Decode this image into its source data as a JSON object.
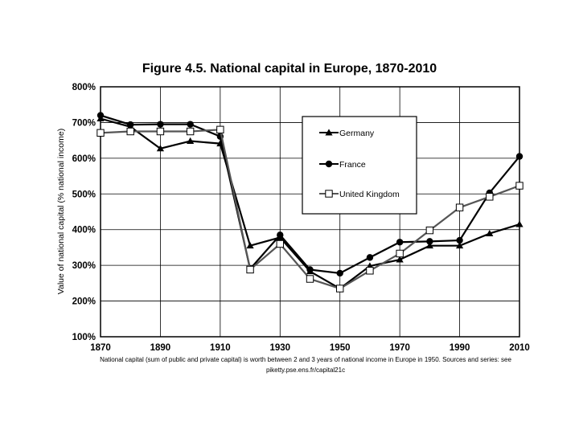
{
  "chart_data": {
    "type": "line",
    "title": "Figure 4.5. National capital in Europe, 1870-2010",
    "xlabel": "",
    "ylabel": "Value of national capital (% national income)",
    "x": [
      1870,
      1880,
      1890,
      1900,
      1910,
      1920,
      1930,
      1940,
      1950,
      1960,
      1970,
      1980,
      1990,
      2000,
      2010
    ],
    "xticks": [
      1870,
      1890,
      1910,
      1930,
      1950,
      1970,
      1990,
      2010
    ],
    "xtick_labels": [
      "1870",
      "1890",
      "1910",
      "1930",
      "1950",
      "1970",
      "1990",
      "2010"
    ],
    "xlim": [
      1870,
      2010
    ],
    "ylim": [
      100,
      800
    ],
    "yticks": [
      100,
      200,
      300,
      400,
      500,
      600,
      700,
      800
    ],
    "ytick_labels": [
      "100%",
      "200%",
      "300%",
      "400%",
      "500%",
      "600%",
      "700%",
      "800%"
    ],
    "grid": true,
    "legend_position": "top-right",
    "series": [
      {
        "name": "Germany",
        "marker": "triangle",
        "color": "#000000",
        "values": [
          711,
          688,
          627,
          648,
          641,
          355,
          378,
          283,
          235,
          298,
          316,
          355,
          355,
          389,
          415
        ]
      },
      {
        "name": "France",
        "marker": "circle",
        "color": "#000000",
        "values": [
          720,
          694,
          695,
          695,
          661,
          290,
          385,
          288,
          278,
          322,
          365,
          367,
          370,
          503,
          605
        ]
      },
      {
        "name": "United Kingdom",
        "marker": "square-open",
        "color": "#555555",
        "values": [
          671,
          675,
          675,
          675,
          680,
          288,
          360,
          262,
          235,
          285,
          333,
          398,
          462,
          492,
          523
        ]
      }
    ],
    "caption": "National capital (sum of public and private capital) is worth between 2 and 3 years of national income in Europe in 1950. Sources and series: see piketty.pse.ens.fr/capital21c"
  }
}
